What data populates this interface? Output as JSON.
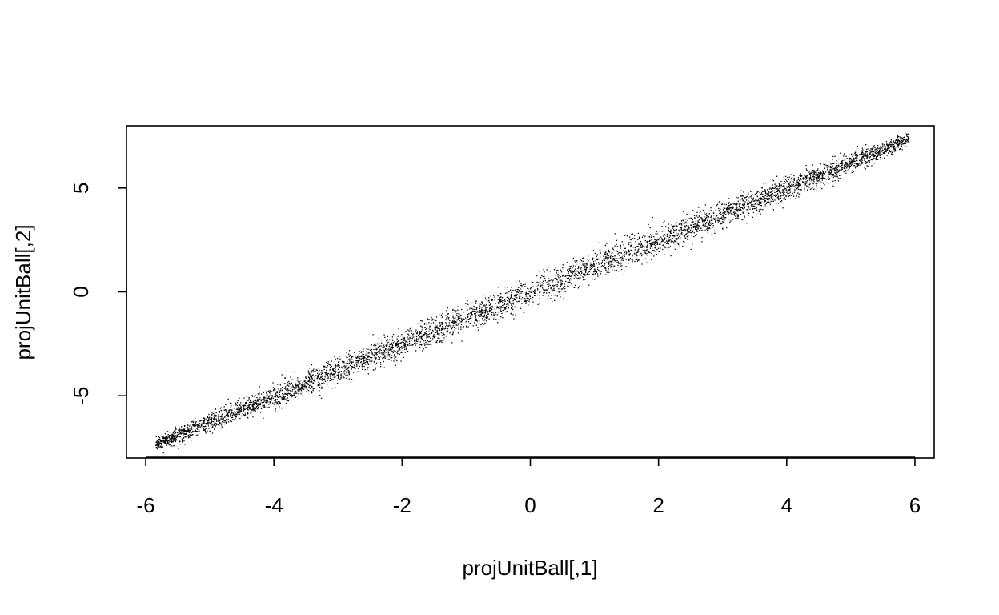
{
  "chart_data": {
    "type": "scatter",
    "title": "",
    "xlabel": "projUnitBall[,1]",
    "ylabel": "projUnitBall[,2]",
    "xlim": [
      -6.3,
      6.3
    ],
    "ylim": [
      -8.0,
      8.0
    ],
    "x_ticks": [
      -6,
      -4,
      -2,
      0,
      2,
      4,
      6
    ],
    "x_tick_labels": [
      "-6",
      "-4",
      "-2",
      "0",
      "2",
      "4",
      "6"
    ],
    "y_ticks": [
      -5,
      0,
      5
    ],
    "y_tick_labels": [
      "-5",
      "0",
      "5"
    ],
    "grid": false,
    "legend": "none",
    "point_color": "#000000",
    "series": [
      {
        "x_range": [
          -5.85,
          5.9
        ],
        "slope": 1.25,
        "band_halfwidth_y": 0.75,
        "description_points": [
          {
            "x": -5.8,
            "y": -7.4
          },
          {
            "x": -4.0,
            "y": -4.9
          },
          {
            "x": -2.0,
            "y": -2.5
          },
          {
            "x": 0.0,
            "y": 0.0
          },
          {
            "x": 2.0,
            "y": 2.5
          },
          {
            "x": 4.0,
            "y": 5.0
          },
          {
            "x": 5.9,
            "y": 7.4
          }
        ]
      }
    ]
  }
}
